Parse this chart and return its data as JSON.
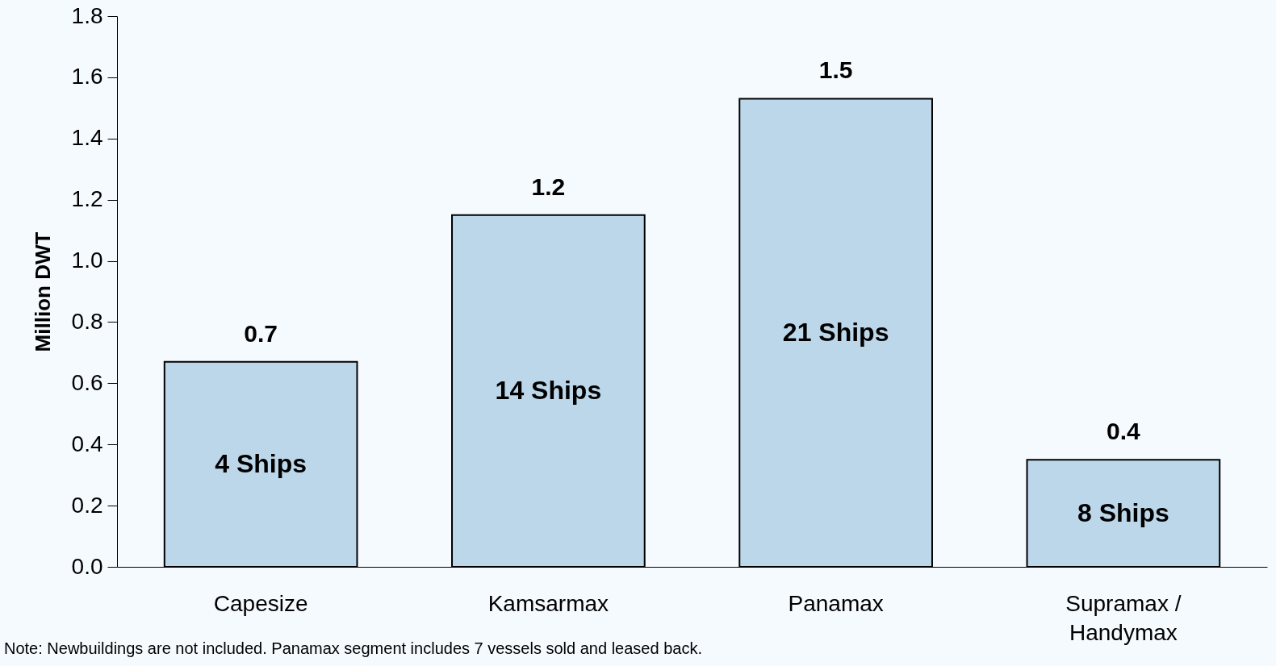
{
  "chart_data": {
    "type": "bar",
    "ylabel": "Million DWT",
    "categories": [
      "Capesize",
      "Kamsarmax",
      "Panamax",
      "Supramax / Handymax"
    ],
    "values": [
      0.67,
      1.15,
      1.53,
      0.35
    ],
    "value_labels": [
      "0.7",
      "1.2",
      "1.5",
      "0.4"
    ],
    "color": "#bdd7ea",
    "ylim": [
      0,
      1.8
    ],
    "yticks": [
      {
        "value": 0,
        "label": "0.0"
      },
      {
        "value": 0.2,
        "label": "0.2"
      },
      {
        "value": 0.4,
        "label": "0.4"
      },
      {
        "value": 0.6,
        "label": "0.6"
      },
      {
        "value": 0.8,
        "label": "0.8"
      },
      {
        "value": 1.0,
        "label": "1.0"
      },
      {
        "value": 1.2,
        "label": "1.2"
      },
      {
        "value": 1.4,
        "label": "1.4"
      },
      {
        "value": 1.6,
        "label": "1.6"
      },
      {
        "value": 1.8,
        "label": "1.8"
      }
    ],
    "grid": false,
    "annotations": [
      "4 Ships",
      "14 Ships",
      "21 Ships",
      "8 Ships",
      "Note: Newbuildings are not included. Panamax segment includes 7 vessels sold and leased back."
    ]
  }
}
